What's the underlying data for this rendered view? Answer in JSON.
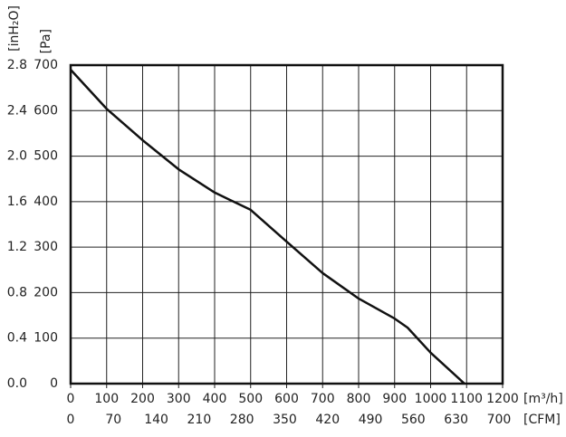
{
  "chart_data": {
    "type": "line",
    "x_label": "[m³/h]",
    "x2_label": "[CFM]",
    "y_label": "[Pa]",
    "y2_label": "[inH₂O]",
    "x": [
      0,
      100,
      200,
      300,
      400,
      500,
      600,
      700,
      800,
      900,
      936,
      1000,
      1094
    ],
    "series": [
      {
        "color": "#111111",
        "values": [
          690,
          604,
          535,
          471,
          420,
          382,
          312,
          243,
          187,
          143,
          123,
          68,
          0
        ]
      }
    ],
    "xlim": [
      0,
      1200
    ],
    "xticks": [
      0,
      100,
      200,
      300,
      400,
      500,
      600,
      700,
      800,
      900,
      1000,
      1100,
      1200
    ],
    "x2lim": [
      0,
      706
    ],
    "x2ticks": [
      0,
      70,
      140,
      210,
      280,
      350,
      420,
      490,
      560,
      630,
      700
    ],
    "ylim": [
      0,
      700
    ],
    "yticks": [
      0,
      100,
      200,
      300,
      400,
      500,
      600,
      700
    ],
    "y2lim": [
      0,
      2.8
    ],
    "y2ticks": [
      {
        "value": 0,
        "label": "0.0"
      },
      0.4,
      0.8,
      1.2,
      1.6,
      {
        "value": 2,
        "label": "2.0"
      },
      2.4,
      2.8
    ],
    "grid": true
  }
}
